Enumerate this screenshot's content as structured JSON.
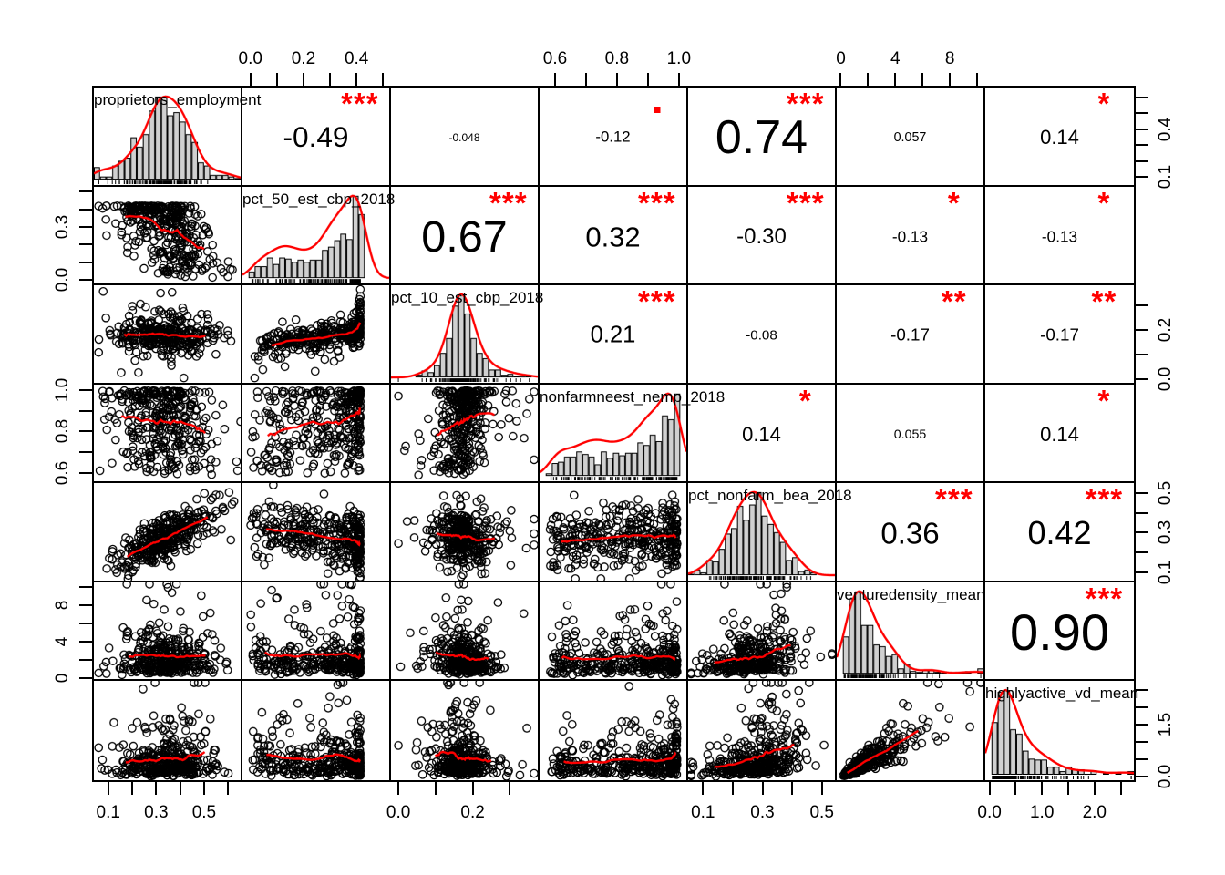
{
  "chart_data": {
    "type": "scatter",
    "subtype": "scatterplot-correlation-matrix",
    "description": "R pairs/chart.Correlation style matrix: diagonal shows histograms with red density curves and variable names, upper triangle shows Pearson correlation coefficients (text size proportional to |r|) with red significance stars in the top-right corner, lower triangle shows scatterplots of black open circles with red smooth (loess) lines.",
    "variables": [
      "proprietors_employment",
      "pct_50_est_cbp_2018",
      "pct_10_est_cbp_2018",
      "nonfarmneest_nemp_2018",
      "pct_nonfarm_bea_2018",
      "venturedensity_mean",
      "highlyactive_vd_mean"
    ],
    "correlations": [
      {
        "row": 1,
        "col": 2,
        "r": -0.49,
        "label": "-0.49",
        "stars": "***"
      },
      {
        "row": 1,
        "col": 3,
        "r": -0.048,
        "label": "-0.048",
        "stars": ""
      },
      {
        "row": 1,
        "col": 4,
        "r": -0.12,
        "label": "-0.12",
        "stars": "."
      },
      {
        "row": 1,
        "col": 5,
        "r": 0.74,
        "label": "0.74",
        "stars": "***"
      },
      {
        "row": 1,
        "col": 6,
        "r": 0.057,
        "label": "0.057",
        "stars": ""
      },
      {
        "row": 1,
        "col": 7,
        "r": 0.14,
        "label": "0.14",
        "stars": "*"
      },
      {
        "row": 2,
        "col": 3,
        "r": 0.67,
        "label": "0.67",
        "stars": "***"
      },
      {
        "row": 2,
        "col": 4,
        "r": 0.32,
        "label": "0.32",
        "stars": "***"
      },
      {
        "row": 2,
        "col": 5,
        "r": -0.3,
        "label": "-0.30",
        "stars": "***"
      },
      {
        "row": 2,
        "col": 6,
        "r": -0.13,
        "label": "-0.13",
        "stars": "*"
      },
      {
        "row": 2,
        "col": 7,
        "r": -0.13,
        "label": "-0.13",
        "stars": "*"
      },
      {
        "row": 3,
        "col": 4,
        "r": 0.21,
        "label": "0.21",
        "stars": "***"
      },
      {
        "row": 3,
        "col": 5,
        "r": -0.08,
        "label": "-0.08",
        "stars": ""
      },
      {
        "row": 3,
        "col": 6,
        "r": -0.17,
        "label": "-0.17",
        "stars": "**"
      },
      {
        "row": 3,
        "col": 7,
        "r": -0.17,
        "label": "-0.17",
        "stars": "**"
      },
      {
        "row": 4,
        "col": 5,
        "r": 0.14,
        "label": "0.14",
        "stars": "*"
      },
      {
        "row": 4,
        "col": 6,
        "r": 0.055,
        "label": "0.055",
        "stars": ""
      },
      {
        "row": 4,
        "col": 7,
        "r": 0.14,
        "label": "0.14",
        "stars": "*"
      },
      {
        "row": 5,
        "col": 6,
        "r": 0.36,
        "label": "0.36",
        "stars": "***"
      },
      {
        "row": 5,
        "col": 7,
        "r": 0.42,
        "label": "0.42",
        "stars": "***"
      },
      {
        "row": 6,
        "col": 7,
        "r": 0.9,
        "label": "0.90",
        "stars": "***"
      }
    ],
    "marginals": [
      {
        "shape": "normal",
        "mu": 0.34,
        "sigma": 0.105,
        "clip": [
          0.06,
          0.66
        ],
        "range": [
          0.04,
          0.66
        ]
      },
      {
        "shape": "left_skew",
        "peak": 0.42,
        "scale": 0.42,
        "pow": 2.2,
        "clip": [
          -0.02,
          0.52
        ],
        "range": [
          -0.03,
          0.53
        ]
      },
      {
        "shape": "normal_heavy",
        "mu": 0.175,
        "sigma": 0.034,
        "clip": [
          0.0,
          0.37
        ],
        "range": [
          -0.02,
          0.38
        ]
      },
      {
        "shape": "left_skew",
        "peak": 1.0,
        "scale": 0.42,
        "pow": 1.7,
        "clip": [
          0.56,
          1.02
        ],
        "range": [
          0.55,
          1.03
        ]
      },
      {
        "shape": "normal",
        "mu": 0.27,
        "sigma": 0.08,
        "clip": [
          0.06,
          0.54
        ],
        "range": [
          0.05,
          0.55
        ]
      },
      {
        "shape": "right_skew",
        "median": 1.7,
        "sigma": 0.78,
        "clip": [
          0.15,
          10.4
        ],
        "range": [
          -0.3,
          10.6
        ]
      },
      {
        "shape": "right_skew",
        "median": 0.4,
        "sigma": 0.82,
        "clip": [
          0.03,
          2.7
        ],
        "range": [
          -0.08,
          2.75
        ]
      }
    ],
    "axes": {
      "top": [
        {
          "col": 2,
          "ticks": [
            0,
            0.1,
            0.2,
            0.3,
            0.4,
            0.5
          ],
          "labels": [
            {
              "v": 0,
              "text": "0.0"
            },
            {
              "v": 0.2,
              "text": "0.2"
            },
            {
              "v": 0.4,
              "text": "0.4"
            }
          ]
        },
        {
          "col": 4,
          "ticks": [
            0.6,
            0.7,
            0.8,
            0.9,
            1.0
          ],
          "labels": [
            {
              "v": 0.6,
              "text": "0.6"
            },
            {
              "v": 0.8,
              "text": "0.8"
            },
            {
              "v": 1.0,
              "text": "1.0"
            }
          ]
        },
        {
          "col": 6,
          "ticks": [
            0,
            2,
            4,
            6,
            8,
            10
          ],
          "labels": [
            {
              "v": 0,
              "text": "0"
            },
            {
              "v": 4,
              "text": "4"
            },
            {
              "v": 8,
              "text": "8"
            }
          ]
        }
      ],
      "bottom": [
        {
          "col": 1,
          "ticks": [
            0.1,
            0.2,
            0.3,
            0.4,
            0.5,
            0.6
          ],
          "labels": [
            {
              "v": 0.1,
              "text": "0.1"
            },
            {
              "v": 0.3,
              "text": "0.3"
            },
            {
              "v": 0.5,
              "text": "0.5"
            }
          ]
        },
        {
          "col": 3,
          "ticks": [
            0,
            0.1,
            0.2,
            0.3
          ],
          "labels": [
            {
              "v": 0,
              "text": "0.0"
            },
            {
              "v": 0.2,
              "text": "0.2"
            }
          ]
        },
        {
          "col": 5,
          "ticks": [
            0.1,
            0.2,
            0.3,
            0.4,
            0.5
          ],
          "labels": [
            {
              "v": 0.1,
              "text": "0.1"
            },
            {
              "v": 0.3,
              "text": "0.3"
            },
            {
              "v": 0.5,
              "text": "0.5"
            }
          ]
        },
        {
          "col": 7,
          "ticks": [
            0,
            0.5,
            1.0,
            1.5,
            2.0,
            2.5
          ],
          "labels": [
            {
              "v": 0,
              "text": "0.0"
            },
            {
              "v": 1.0,
              "text": "1.0"
            },
            {
              "v": 2.0,
              "text": "2.0"
            }
          ]
        }
      ],
      "left": [
        {
          "row": 2,
          "ticks": [
            0,
            0.1,
            0.2,
            0.3,
            0.4,
            0.5
          ],
          "labels": [
            {
              "v": 0,
              "text": "0.0"
            },
            {
              "v": 0.3,
              "text": "0.3"
            }
          ]
        },
        {
          "row": 4,
          "ticks": [
            0.6,
            0.7,
            0.8,
            0.9,
            1.0
          ],
          "labels": [
            {
              "v": 0.6,
              "text": "0.6"
            },
            {
              "v": 0.8,
              "text": "0.8"
            },
            {
              "v": 1.0,
              "text": "1.0"
            }
          ]
        },
        {
          "row": 6,
          "ticks": [
            0,
            2,
            4,
            6,
            8,
            10
          ],
          "labels": [
            {
              "v": 0,
              "text": "0"
            },
            {
              "v": 4,
              "text": "4"
            },
            {
              "v": 8,
              "text": "8"
            }
          ]
        }
      ],
      "right": [
        {
          "row": 1,
          "ticks": [
            0.1,
            0.2,
            0.3,
            0.4,
            0.5,
            0.6
          ],
          "labels": [
            {
              "v": 0.1,
              "text": "0.1"
            },
            {
              "v": 0.4,
              "text": "0.4"
            }
          ]
        },
        {
          "row": 3,
          "ticks": [
            0,
            0.1,
            0.2,
            0.3
          ],
          "labels": [
            {
              "v": 0,
              "text": "0.0"
            },
            {
              "v": 0.2,
              "text": "0.2"
            }
          ]
        },
        {
          "row": 5,
          "ticks": [
            0.1,
            0.2,
            0.3,
            0.4,
            0.5
          ],
          "labels": [
            {
              "v": 0.1,
              "text": "0.1"
            },
            {
              "v": 0.3,
              "text": "0.3"
            },
            {
              "v": 0.5,
              "text": "0.5"
            }
          ]
        },
        {
          "row": 7,
          "ticks": [
            0,
            0.5,
            1.0,
            1.5,
            2.0,
            2.5
          ],
          "labels": [
            {
              "v": 0,
              "text": "0.0"
            },
            {
              "v": 1.5,
              "text": "1.5"
            }
          ]
        }
      ]
    },
    "colors": {
      "points": "#000000",
      "smooth_line": "#ff0000",
      "density_line": "#ff0000",
      "stars": "#ff0000",
      "histogram_fill": "#d0d0d0",
      "histogram_stroke": "#000000",
      "text": "#000000",
      "background": "#ffffff"
    },
    "legend_position": "none",
    "grid": false
  }
}
